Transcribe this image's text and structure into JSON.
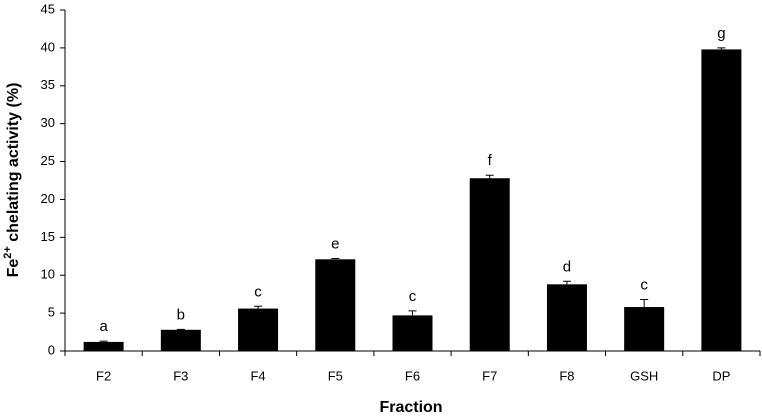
{
  "chart_data": {
    "type": "bar",
    "y_label": {
      "base": "Fe",
      "superscript": "2+",
      "rest": " chelating activity (%)"
    },
    "x_label": "Fraction",
    "categories": [
      "F2",
      "F3",
      "F4",
      "F5",
      "F6",
      "F7",
      "F8",
      "GSH",
      "DP"
    ],
    "values": [
      1.2,
      2.8,
      5.6,
      12.1,
      4.7,
      22.8,
      8.8,
      5.8,
      39.8
    ],
    "errors": [
      0.1,
      0.05,
      0.3,
      0.1,
      0.6,
      0.4,
      0.4,
      1.0,
      0.2
    ],
    "letters": [
      "a",
      "b",
      "c",
      "e",
      "c",
      "f",
      "d",
      "c",
      "g"
    ],
    "color": "#000000",
    "ylim": [
      0,
      45
    ],
    "yticks": [
      0,
      5,
      10,
      15,
      20,
      25,
      30,
      35,
      40,
      45
    ],
    "grid": false
  }
}
